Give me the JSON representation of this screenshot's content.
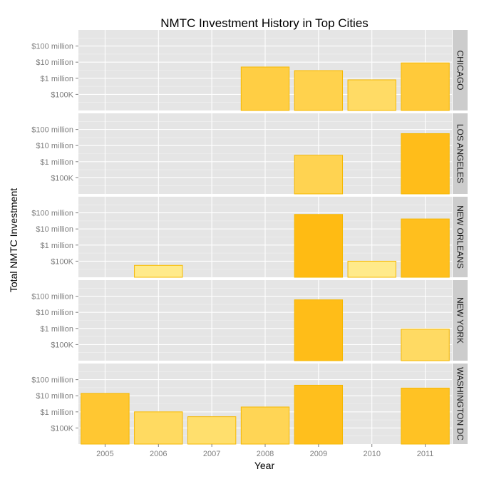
{
  "chart_data": {
    "type": "bar",
    "title": "NMTC Investment History in Top Cities",
    "xlabel": "Year",
    "ylabel": "Total NMTC Investment",
    "y_scale": "log10",
    "ylim": [
      10000,
      1000000000
    ],
    "y_ticks": [
      {
        "value": 100000,
        "label": "$100K"
      },
      {
        "value": 1000000,
        "label": "$1 million"
      },
      {
        "value": 10000000,
        "label": "$10 million"
      },
      {
        "value": 100000000,
        "label": "$100 million"
      }
    ],
    "categories": [
      "2005",
      "2006",
      "2007",
      "2008",
      "2009",
      "2010",
      "2011"
    ],
    "grid": true,
    "panel_background": "#e5e5e5",
    "strip_background": "#cccccc",
    "bar_outline": "#f5b800",
    "fill_scale": {
      "low": "#ffea8a",
      "high": "#ffb90f"
    },
    "facets": [
      {
        "name": "CHICAGO",
        "values": [
          null,
          null,
          null,
          5000000,
          3000000,
          800000,
          9000000
        ]
      },
      {
        "name": "LOS ANGELES",
        "values": [
          null,
          null,
          null,
          null,
          2500000,
          null,
          55000000
        ]
      },
      {
        "name": "NEW ORLEANS",
        "values": [
          null,
          55000,
          null,
          null,
          80000000,
          100000,
          42000000
        ]
      },
      {
        "name": "NEW YORK",
        "values": [
          null,
          null,
          null,
          null,
          60000000,
          null,
          900000
        ]
      },
      {
        "name": "WASHINGTON DC",
        "values": [
          14000000,
          1000000,
          500000,
          2000000,
          45000000,
          null,
          30000000
        ]
      }
    ]
  }
}
